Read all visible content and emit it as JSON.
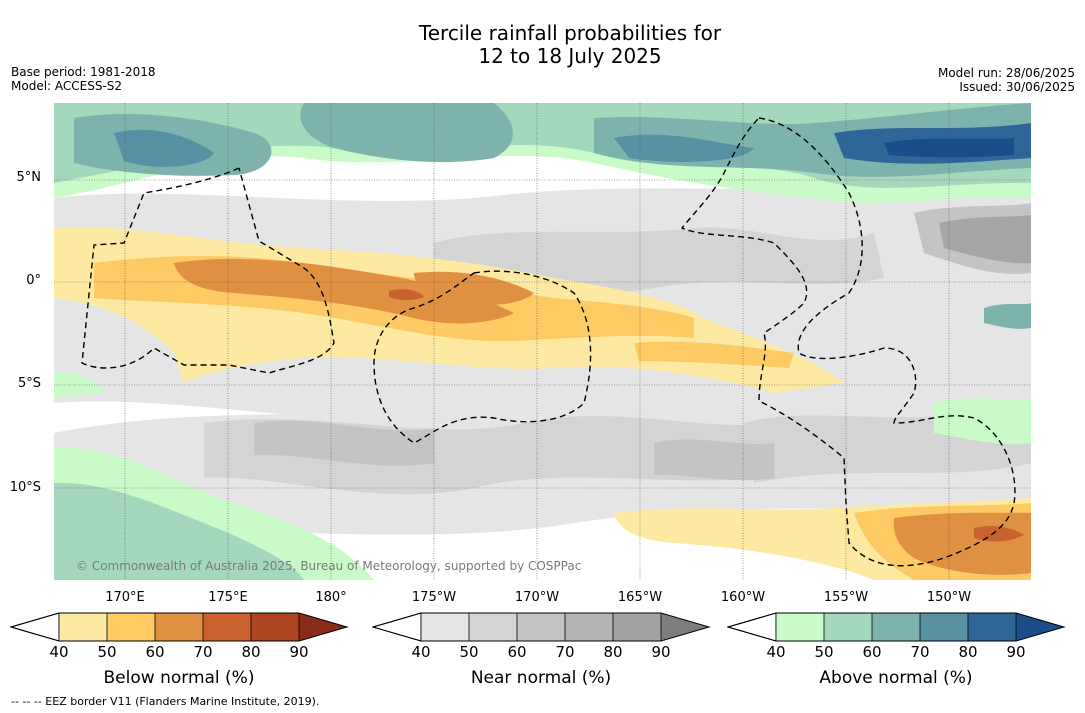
{
  "title_line1": "Tercile rainfall probabilities for",
  "title_line2": "12 to 18 July 2025",
  "base_period": "Base period: 1981-2018",
  "model": "Model: ACCESS-S2",
  "model_run": "Model run: 28/06/2025",
  "issued": "Issued: 30/06/2025",
  "lat_labels": [
    "5°N",
    "0°",
    "5°S",
    "10°S"
  ],
  "lon_labels": [
    "170°E",
    "175°E",
    "180°",
    "175°W",
    "170°W",
    "165°W",
    "160°W",
    "155°W",
    "150°W"
  ],
  "copyright": "© Commonwealth of Australia 2025, Bureau of Meteorology, supported by COSPPac",
  "colorbars": {
    "below": {
      "title": "Below normal (%)",
      "ticks": [
        "40",
        "50",
        "60",
        "70",
        "80",
        "90"
      ],
      "colors": [
        "#fee9a2",
        "#fdca64",
        "#df9040",
        "#c9622e",
        "#ad4521",
        "#8b2b1a"
      ]
    },
    "near": {
      "title": "Near normal (%)",
      "ticks": [
        "40",
        "50",
        "60",
        "70",
        "80",
        "90"
      ],
      "colors": [
        "#e5e5e5",
        "#d4d4d4",
        "#c4c4c4",
        "#b4b4b4",
        "#a3a3a3",
        "#7d7d7d"
      ]
    },
    "above": {
      "title": "Above normal (%)",
      "ticks": [
        "40",
        "50",
        "60",
        "70",
        "80",
        "90"
      ],
      "colors": [
        "#c8fbc7",
        "#a4d8bd",
        "#7eb3ad",
        "#5991a4",
        "#2f6698",
        "#1c4c89"
      ]
    }
  },
  "footnote": "--  --  -- EEZ border V11 (Flanders Marine Institute, 2019)."
}
